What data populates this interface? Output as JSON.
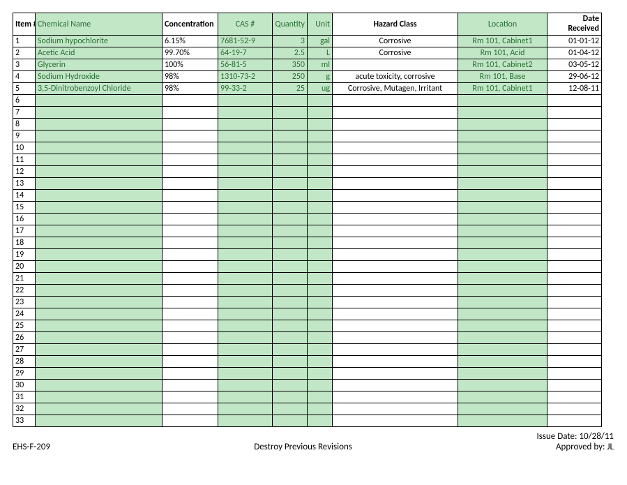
{
  "columns": [
    {
      "key": "item",
      "label": "Item #",
      "th_class": "white",
      "align": "left",
      "col_class": "col-item",
      "cell_bg": "white",
      "cell_align": "left"
    },
    {
      "key": "name",
      "label": "Chemical Name",
      "th_class": "green",
      "align": "left",
      "col_class": "col-name",
      "cell_bg": "green",
      "cell_align": "left"
    },
    {
      "key": "conc",
      "label": "Concentration",
      "th_class": "white",
      "align": "left",
      "col_class": "col-conc",
      "cell_bg": "white",
      "cell_align": "left"
    },
    {
      "key": "cas",
      "label": "CAS #",
      "th_class": "green",
      "align": "center",
      "col_class": "col-cas",
      "cell_bg": "green",
      "cell_align": "left"
    },
    {
      "key": "qty",
      "label": "Quantity",
      "th_class": "green",
      "align": "right",
      "col_class": "col-qty",
      "cell_bg": "green",
      "cell_align": "right"
    },
    {
      "key": "unit",
      "label": "Unit",
      "th_class": "green",
      "align": "right",
      "col_class": "col-unit",
      "cell_bg": "green",
      "cell_align": "right"
    },
    {
      "key": "hazard",
      "label": "Hazard Class",
      "th_class": "white",
      "align": "center",
      "col_class": "col-hazard",
      "cell_bg": "white",
      "cell_align": "center"
    },
    {
      "key": "loc",
      "label": "Location",
      "th_class": "green",
      "align": "center",
      "col_class": "col-loc",
      "cell_bg": "green",
      "cell_align": "center"
    },
    {
      "key": "date",
      "label": "Date Received",
      "th_class": "white",
      "align": "right",
      "col_class": "col-date",
      "cell_bg": "white",
      "cell_align": "right"
    }
  ],
  "rows": [
    {
      "item": "1",
      "name": "Sodium hypochlorite",
      "conc": "6.15%",
      "cas": "7681-52-9",
      "qty": "3",
      "unit": "gal",
      "hazard": "Corrosive",
      "loc": "Rm 101, Cabinet1",
      "date": "01-01-12"
    },
    {
      "item": "2",
      "name": "Acetic Acid",
      "conc": "99.70%",
      "cas": "64-19-7",
      "qty": "2.5",
      "unit": "L",
      "hazard": "Corrosive",
      "loc": "Rm 101, Acid",
      "date": "01-04-12"
    },
    {
      "item": "3",
      "name": "Glycerin",
      "conc": "100%",
      "cas": "56-81-5",
      "qty": "350",
      "unit": "ml",
      "hazard": "",
      "loc": "Rm 101, Cabinet2",
      "date": "03-05-12"
    },
    {
      "item": "4",
      "name": "Sodium Hydroxide",
      "conc": "98%",
      "cas": "1310-73-2",
      "qty": "250",
      "unit": "g",
      "hazard": "acute toxicity, corrosive",
      "loc": "Rm 101, Base",
      "date": "29-06-12"
    },
    {
      "item": "5",
      "name": "3,5-Dinitrobenzoyl Chloride",
      "conc": "98%",
      "cas": "99-33-2",
      "qty": "25",
      "unit": "ug",
      "hazard": "Corrosive, Mutagen, Irritant",
      "loc": "Rm 101, Cabinet1",
      "date": "12-08-11"
    }
  ],
  "empty_start": 6,
  "empty_end": 33,
  "footer": {
    "form_id": "EHS-F-209",
    "center_note": "Destroy Previous Revisions",
    "issue_date": "Issue Date: 10/28/11",
    "approved": "Approved by: JL"
  },
  "style": {
    "green_bg": "#c2e7c7",
    "green_text": "#2a6e34",
    "border": "#000000",
    "font": "Calibri"
  }
}
